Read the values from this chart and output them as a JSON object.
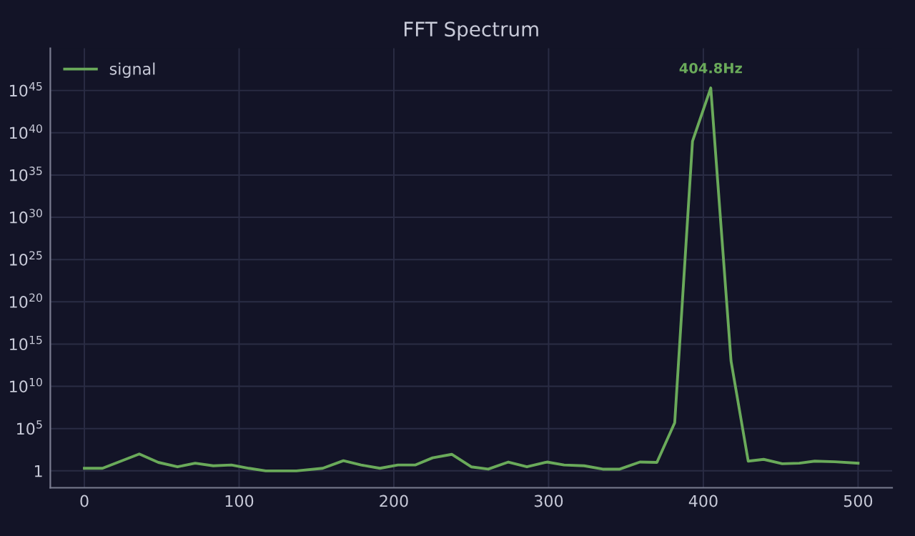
{
  "chart_data": {
    "type": "line",
    "title": "FFT Spectrum",
    "x": [
      0,
      11.7,
      35.5,
      47.8,
      60.2,
      71.6,
      83.3,
      95,
      106.4,
      117.2,
      137,
      154,
      167.4,
      178.8,
      191,
      202.6,
      214,
      225,
      237.4,
      250,
      261,
      274,
      286,
      299,
      310,
      323,
      335,
      346,
      359,
      370,
      381.5,
      393,
      404.8,
      417.9,
      429,
      439,
      451,
      462,
      472,
      485,
      500
    ],
    "series": [
      {
        "name": "signal",
        "color": "#6aaa5a",
        "values": [
          2,
          2,
          100,
          10,
          3,
          8,
          4,
          5,
          2,
          1,
          1,
          2,
          16,
          5,
          2,
          5,
          5,
          35,
          90,
          3,
          1.6,
          11,
          3,
          11,
          5,
          4,
          1.6,
          1.6,
          11,
          10,
          500000.0,
          1e+39,
          2e+45,
          10000000000000.0,
          14,
          23,
          7,
          8,
          14,
          12,
          8
        ]
      }
    ],
    "annotations": [
      {
        "text": "404.8Hz",
        "x": 404.8,
        "y": 2e+45
      }
    ],
    "log": "y",
    "xlim": [
      -22,
      522
    ],
    "ylim": [
      0.01,
      1e+50
    ],
    "xticks": [
      0,
      100,
      200,
      300,
      400,
      500
    ],
    "yticks": [
      1,
      {
        "value": 100000.0,
        "label": "10$^{5}$"
      },
      {
        "value": 10000000000.0,
        "label": "10$^{10}$"
      },
      {
        "value": 1000000000000000.0,
        "label": "10$^{15}$"
      },
      {
        "value": 1e+20,
        "label": "10$^{20}$"
      },
      {
        "value": 1e+25,
        "label": "10$^{25}$"
      },
      {
        "value": 1e+30,
        "label": "10$^{30}$"
      },
      {
        "value": 1e+35,
        "label": "10$^{35}$"
      },
      {
        "value": 1e+40,
        "label": "10$^{40}$"
      },
      {
        "value": 1e+45,
        "label": "10$^{45}$"
      }
    ],
    "grid": true,
    "legend": "top left",
    "marker": "none",
    "line_style": "solid"
  }
}
